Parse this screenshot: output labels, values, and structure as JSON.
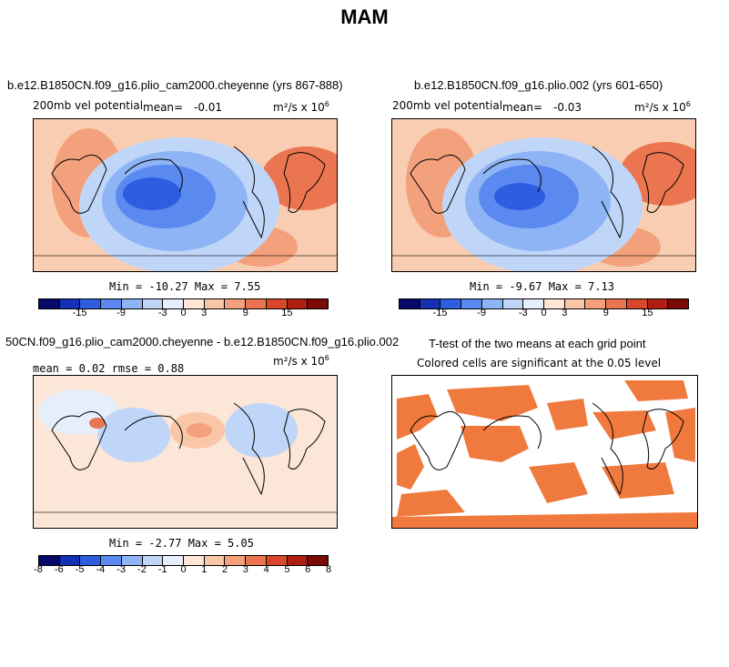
{
  "title": "MAM",
  "panels": [
    {
      "title": "b.e12.B1850CN.f09_g16.plio_cam2000.cheyenne (yrs 867-888)",
      "variable": "200mb vel potential",
      "stat_label": "mean=",
      "stat_value": "-0.01",
      "units": "m²/s x 10",
      "units_exp": "6",
      "minmax": "Min = -10.27 Max =    7.55"
    },
    {
      "title": "b.e12.B1850CN.f09_g16.plio.002 (yrs 601-650)",
      "variable": "200mb vel potential",
      "stat_label": "mean=",
      "stat_value": "-0.03",
      "units": "m²/s x 10",
      "units_exp": "6",
      "minmax": "Min =  -9.67 Max =    7.13"
    },
    {
      "title": "50CN.f09_g16.plio_cam2000.cheyenne - b.e12.B1850CN.f09_g16.plio.002",
      "stats": "mean =    0.02    rmse =    0.88",
      "units": "m²/s x 10",
      "units_exp": "6",
      "minmax": "Min =  -2.77 Max =    5.05"
    },
    {
      "title": "T-test of the two means at each grid point",
      "subtitle": "Colored cells are significant at the 0.05 level"
    }
  ],
  "colorbar_main": {
    "colors": [
      "#08086b",
      "#1430b4",
      "#2e5ee0",
      "#5a8af0",
      "#8fb4f5",
      "#c0d6f8",
      "#e6eefb",
      "#fde6d6",
      "#f9c7a8",
      "#f3a17c",
      "#eb7550",
      "#d9472a",
      "#b01e12",
      "#7a0a05"
    ],
    "labels": [
      "-15",
      "-9",
      "-3",
      "0",
      "3",
      "9",
      "15"
    ]
  },
  "colorbar_diff": {
    "colors": [
      "#08086b",
      "#1430b4",
      "#2e5ee0",
      "#5a8af0",
      "#8fb4f5",
      "#c0d6f8",
      "#e6eefb",
      "#fde6d6",
      "#f9c7a8",
      "#f3a17c",
      "#eb7550",
      "#d9472a",
      "#b01e12",
      "#7a0a05"
    ],
    "labels": [
      "-8",
      "-6",
      "-5",
      "-4",
      "-3",
      "-2",
      "-1",
      "0",
      "1",
      "2",
      "3",
      "4",
      "5",
      "6",
      "8"
    ]
  }
}
